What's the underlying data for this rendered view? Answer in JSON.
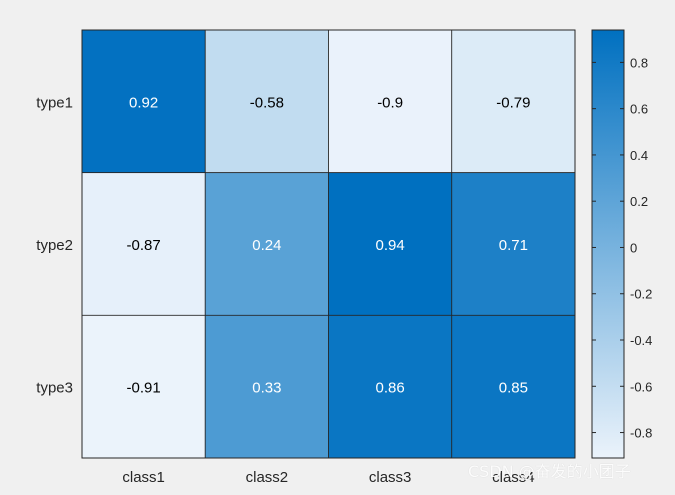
{
  "chart_data": {
    "type": "heatmap",
    "title": "",
    "xlabel": "",
    "ylabel": "",
    "x_categories": [
      "class1",
      "class2",
      "class3",
      "class4"
    ],
    "y_categories": [
      "type1",
      "type2",
      "type3"
    ],
    "values": [
      [
        0.92,
        -0.58,
        -0.9,
        -0.79
      ],
      [
        -0.87,
        0.24,
        0.94,
        0.71
      ],
      [
        -0.91,
        0.33,
        0.86,
        0.85
      ]
    ],
    "cell_labels": [
      [
        "0.92",
        "-0.58",
        "-0.9",
        "-0.79"
      ],
      [
        "-0.87",
        "0.24",
        "0.94",
        "0.71"
      ],
      [
        "-0.91",
        "0.33",
        "0.86",
        "0.85"
      ]
    ],
    "colorbar": {
      "range": [
        -0.91,
        0.94
      ],
      "ticks": [
        0.8,
        0.6,
        0.4,
        0.2,
        0,
        -0.2,
        -0.4,
        -0.6,
        -0.8
      ],
      "tick_labels": [
        "0.8",
        "0.6",
        "0.4",
        "0.2",
        "0",
        "-0.2",
        "-0.4",
        "-0.6",
        "-0.8"
      ],
      "placement": "right"
    },
    "colors": {
      "low": "#ebf3fb",
      "high": "#0070c0",
      "background": "#f0f0f0"
    }
  },
  "watermark": "CSDN @奋发的小团子"
}
